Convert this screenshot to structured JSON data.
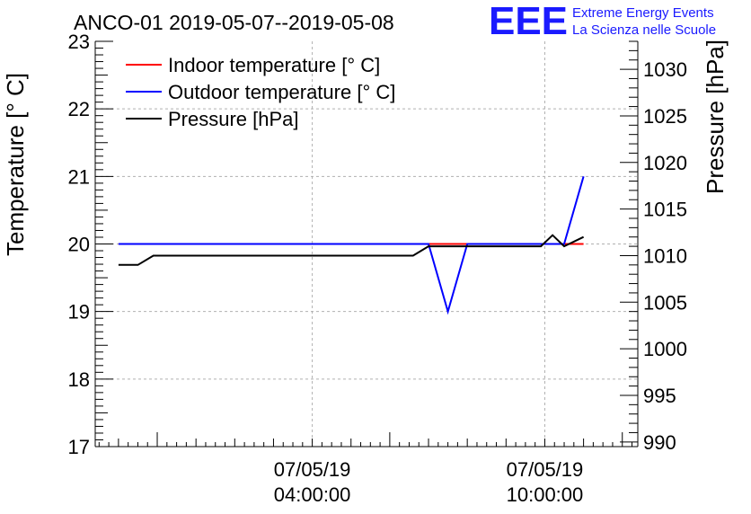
{
  "chart_data": {
    "type": "line",
    "title": "ANCO-01 2019-05-07--2019-05-08",
    "ylabel": "Temperature [° C]",
    "y2label": "Pressure [hPa]",
    "ylim": [
      17,
      23
    ],
    "y2lim": [
      989.5,
      1033
    ],
    "xlim_hours": [
      -1.6,
      12.4
    ],
    "yticks": [
      "17",
      "18",
      "19",
      "20",
      "21",
      "22",
      "23"
    ],
    "y2ticks": [
      "990",
      "995",
      "1000",
      "1005",
      "1010",
      "1015",
      "1020",
      "1025",
      "1030"
    ],
    "xticks": [
      {
        "hour": 4,
        "date": "07/05/19",
        "time": "04:00:00"
      },
      {
        "hour": 10,
        "date": "07/05/19",
        "time": "10:00:00"
      }
    ],
    "legend_position": "top-left",
    "series": [
      {
        "name": "Indoor temperature [° C]",
        "color": "#ff0000",
        "axis": "left",
        "x": [
          -1.0,
          1.0,
          3.0,
          5.0,
          6.8,
          7.3,
          8.3,
          9.3,
          10.5,
          11.0
        ],
        "y": [
          20,
          20,
          20,
          20,
          20,
          20,
          20,
          20,
          20,
          20
        ]
      },
      {
        "name": "Outdoor temperature [° C]",
        "color": "#0000ff",
        "axis": "left",
        "x": [
          -1.0,
          1.0,
          3.0,
          5.0,
          6.8,
          7.0,
          7.5,
          8.0,
          9.3,
          10.5,
          11.0
        ],
        "y": [
          20,
          20,
          20,
          20,
          20,
          20,
          19,
          20,
          20,
          20,
          21
        ]
      },
      {
        "name": "Pressure [hPa]",
        "color": "#000000",
        "axis": "right",
        "x": [
          -1.0,
          -0.5,
          -0.1,
          1.0,
          3.0,
          5.0,
          6.6,
          7.0,
          8.0,
          9.0,
          9.9,
          10.2,
          10.5,
          11.0
        ],
        "y": [
          1009,
          1009,
          1010,
          1010,
          1010,
          1010,
          1010,
          1011,
          1011,
          1011,
          1011,
          1012.2,
          1011,
          1012
        ]
      }
    ]
  },
  "logo": {
    "mark": "EEE",
    "line1": "Extreme Energy Events",
    "line2": "La Scienza nelle Scuole",
    "color": "#1a1aff"
  }
}
